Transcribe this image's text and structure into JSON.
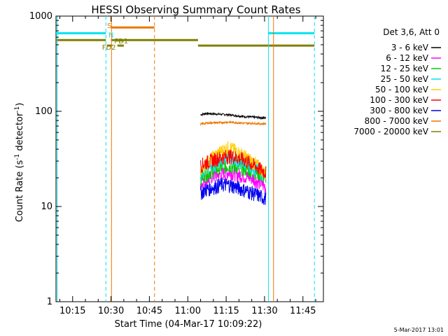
{
  "chart_data": {
    "type": "line",
    "title": "HESSI Observing Summary Count Rates",
    "xlabel": "Start Time (04-Mar-17 10:09:22)",
    "ylabel_main": "Count Rate (s",
    "ylabel_sup1": "-1",
    "ylabel_mid": " detector",
    "ylabel_sup2": "-1",
    "ylabel_end": ")",
    "yscale": "log",
    "ylim": [
      1,
      1000
    ],
    "xlim_minutes": [
      -6.5,
      98.0
    ],
    "x_unit": "minutes after 10:15",
    "x_ticks": [
      {
        "label": "10:15",
        "x": 0
      },
      {
        "label": "10:30",
        "x": 15
      },
      {
        "label": "10:45",
        "x": 30
      },
      {
        "label": "11:00",
        "x": 45
      },
      {
        "label": "11:15",
        "x": 60
      },
      {
        "label": "11:30",
        "x": 75
      },
      {
        "label": "11:45",
        "x": 90
      }
    ],
    "y_ticks": [
      {
        "label": "1",
        "y": 1
      },
      {
        "label": "10",
        "y": 10
      },
      {
        "label": "100",
        "y": 100
      },
      {
        "label": "1000",
        "y": 1000
      }
    ],
    "legend_title": "Det 3,6, Att 0",
    "legend_position": "right",
    "series": [
      {
        "name": "3 - 6 keV",
        "color": "#000000",
        "x": [
          50.0,
          52.0,
          55.0,
          58.0,
          61.0,
          64.0,
          67.0,
          70.0,
          73.0,
          75.5
        ],
        "y": [
          92,
          95,
          94,
          93,
          92,
          90,
          88,
          87,
          86,
          85
        ]
      },
      {
        "name": "6 - 12 keV",
        "color": "#ff00ff",
        "x": [
          50.0,
          52.0,
          55.0,
          58.0,
          61.0,
          64.0,
          67.0,
          70.0,
          73.0,
          75.5
        ],
        "y": [
          17,
          19,
          21,
          22,
          23,
          22,
          21,
          20,
          18,
          16
        ]
      },
      {
        "name": "12 - 25 keV",
        "color": "#00cc00",
        "x": [
          50.0,
          52.0,
          55.0,
          58.0,
          61.0,
          64.0,
          67.0,
          70.0,
          73.0,
          75.5
        ],
        "y": [
          20,
          22,
          24,
          26,
          27,
          26,
          25,
          24,
          22,
          20
        ]
      },
      {
        "name": "25 - 50 keV",
        "color": "#00e5ee",
        "x": [
          50.0,
          52.0,
          55.0,
          58.0,
          61.0,
          64.0,
          67.0,
          70.0,
          73.0,
          75.5
        ],
        "y": [
          22,
          25,
          28,
          31,
          33,
          31,
          29,
          27,
          24,
          21
        ]
      },
      {
        "name": "50 - 100 keV",
        "color": "#ffcc00",
        "x": [
          50.0,
          52.0,
          55.0,
          58.0,
          61.0,
          64.0,
          67.0,
          70.0,
          73.0,
          75.5
        ],
        "y": [
          24,
          28,
          33,
          38,
          42,
          38,
          34,
          30,
          26,
          22
        ]
      },
      {
        "name": "100 - 300 keV",
        "color": "#ff0000",
        "x": [
          50.0,
          52.0,
          55.0,
          58.0,
          61.0,
          64.0,
          67.0,
          70.0,
          73.0,
          75.5
        ],
        "y": [
          27,
          29,
          31,
          33,
          34,
          33,
          31,
          28,
          25,
          23
        ]
      },
      {
        "name": "300 - 800 keV",
        "color": "#0000ee",
        "x": [
          50.0,
          52.0,
          55.0,
          58.0,
          61.0,
          64.0,
          67.0,
          70.0,
          73.0,
          75.5
        ],
        "y": [
          14,
          15,
          16,
          17,
          17,
          16,
          15,
          14,
          13,
          12
        ]
      },
      {
        "name": "800 - 7000 keV",
        "color": "#ee7600",
        "x": [
          50.0,
          52.0,
          55.0,
          58.0,
          61.0,
          64.0,
          67.0,
          70.0,
          73.0,
          75.5
        ],
        "y": [
          73,
          75,
          76,
          76,
          77,
          76,
          75,
          75,
          74,
          74
        ]
      },
      {
        "name": "7000 - 20000 keV",
        "color": "#808000",
        "x": [],
        "y": []
      }
    ],
    "flag_segments": [
      {
        "label": "",
        "color": "#00e5ee",
        "x0": -6.5,
        "x1": 13.0,
        "y": 660
      },
      {
        "label": "",
        "color": "#00e5ee",
        "x0": 76.5,
        "x1": 94.5,
        "y": 660
      },
      {
        "label": "S",
        "color": "#ee7600",
        "x0": 15.0,
        "x1": 32.0,
        "y": 760
      },
      {
        "label": "",
        "color": "#808000",
        "x0": -6.5,
        "x1": 13.0,
        "y": 560
      },
      {
        "label": "",
        "color": "#808000",
        "x0": 15.0,
        "x1": 49.0,
        "y": 560
      },
      {
        "label": "FD1",
        "color": "#808000",
        "x0": 16.5,
        "x1": 20.0,
        "y": 555
      },
      {
        "label": "FD2",
        "color": "#808000",
        "x0": 13.5,
        "x1": 15.5,
        "y": 490
      },
      {
        "label": "",
        "color": "#808000",
        "x0": 17.5,
        "x1": 20.0,
        "y": 490
      },
      {
        "label": "",
        "color": "#808000",
        "x0": 49.0,
        "x1": 94.5,
        "y": 490
      }
    ],
    "flag_labels": [
      {
        "text": "S",
        "color": "#ee7600",
        "x": 13.5,
        "y": 800
      },
      {
        "text": "N",
        "color": "#00e5ee",
        "x": 14.0,
        "y": 640
      },
      {
        "text": "FD1",
        "color": "#808000",
        "x": 16.3,
        "y": 555
      },
      {
        "text": "FD2",
        "color": "#808000",
        "x": 11.5,
        "y": 475
      }
    ],
    "vlines": [
      {
        "color": "#00e5ee",
        "style": "solid",
        "x": -6.0
      },
      {
        "color": "#00e5ee",
        "style": "dashed",
        "x": 13.0
      },
      {
        "color": "#ee7600",
        "style": "solid",
        "x": 15.2
      },
      {
        "color": "#ee7600",
        "style": "dashed",
        "x": 32.0
      },
      {
        "color": "#00e5ee",
        "style": "solid",
        "x": 76.5
      },
      {
        "color": "#00e5ee",
        "style": "dashed",
        "x": 94.5
      },
      {
        "color": "#ee7600",
        "style": "solid",
        "x": 78.5
      }
    ],
    "footer_date": "5-Mar-2017 13:01"
  }
}
